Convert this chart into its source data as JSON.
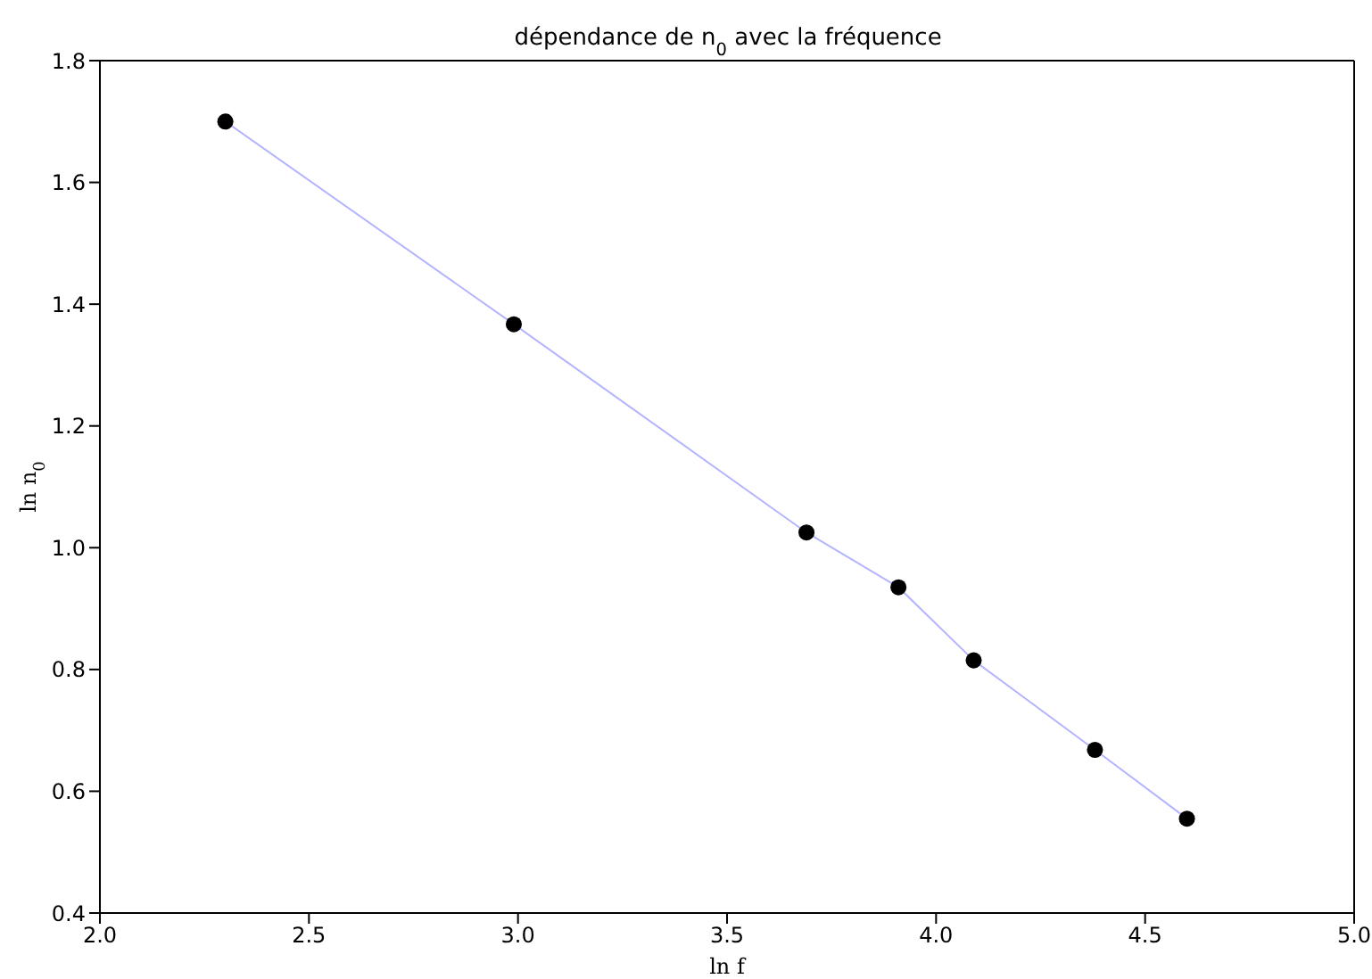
{
  "chart_data": {
    "type": "line",
    "title": "dépendance de n$_{0}$ avec la fréquence",
    "xlabel": "ln f",
    "ylabel": "ln n$_{0}$",
    "xlim": [
      2.0,
      5.0
    ],
    "xticks": [
      {
        "value": 2,
        "label": "2.0"
      },
      {
        "value": 2.5,
        "label": "2.5"
      },
      {
        "value": 3,
        "label": "3.0"
      },
      {
        "value": 3.5,
        "label": "3.5"
      },
      {
        "value": 4,
        "label": "4.0"
      },
      {
        "value": 4.5,
        "label": "4.5"
      },
      {
        "value": 5,
        "label": "5.0"
      }
    ],
    "ylim": [
      0.4,
      1.8
    ],
    "yticks": [
      {
        "value": 0.4,
        "label": "0.4"
      },
      {
        "value": 0.6,
        "label": "0.6"
      },
      {
        "value": 0.8,
        "label": "0.8"
      },
      {
        "value": 1.0,
        "label": "1.0"
      },
      {
        "value": 1.2,
        "label": "1.2"
      },
      {
        "value": 1.4,
        "label": "1.4"
      },
      {
        "value": 1.6,
        "label": "1.6"
      },
      {
        "value": 1.8,
        "label": "1.8"
      }
    ],
    "series": [
      {
        "color": "#b4b4ff",
        "marker": "none",
        "x": [
          2.3,
          2.99,
          3.69,
          3.91,
          4.09,
          4.38,
          4.6
        ],
        "values": [
          1.7,
          1.367,
          1.025,
          0.935,
          0.815,
          0.668,
          0.555
        ]
      },
      {
        "type": "scatter",
        "color": "#000000",
        "marker": "circle",
        "x": [
          2.3,
          2.99,
          3.69,
          3.91,
          4.09,
          4.38,
          4.6
        ],
        "values": [
          1.7,
          1.367,
          1.025,
          0.935,
          0.815,
          0.668,
          0.555
        ]
      }
    ]
  }
}
